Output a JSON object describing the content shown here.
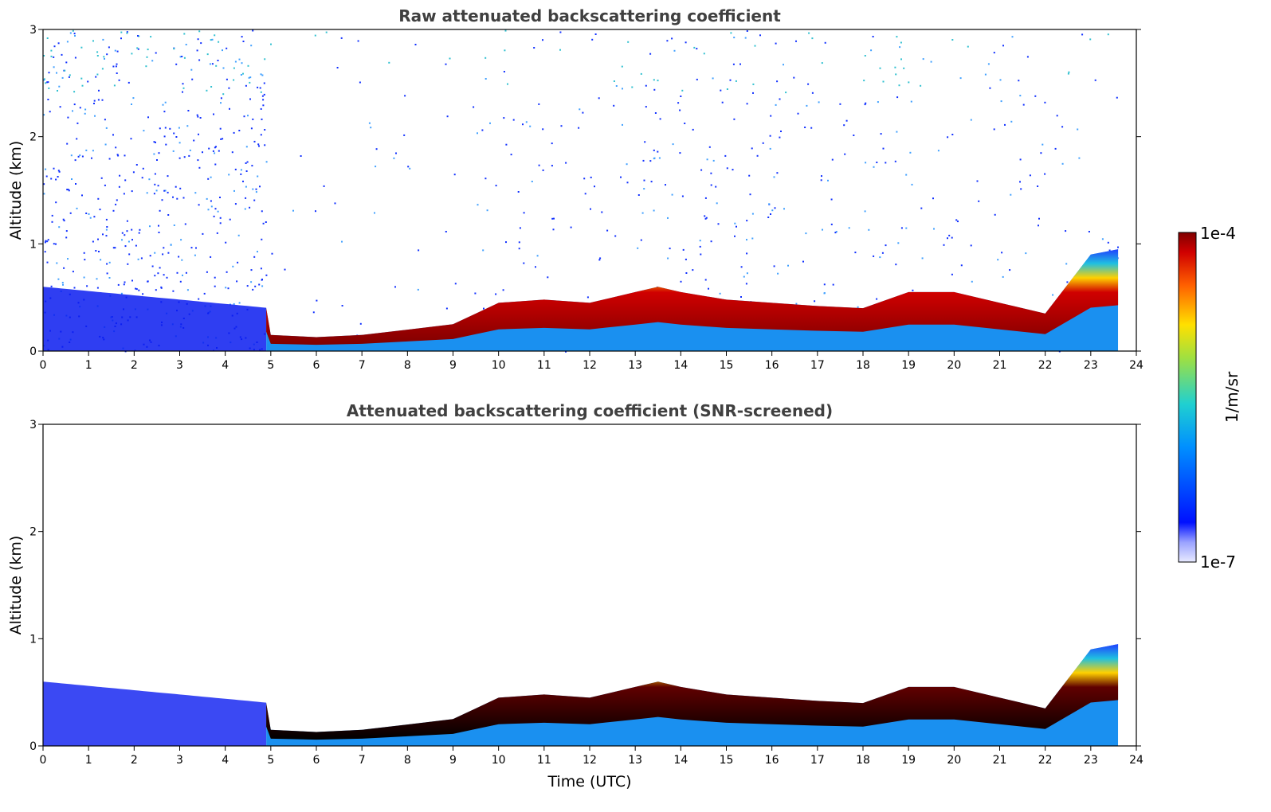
{
  "chart_data": [
    {
      "type": "heatmap",
      "title": "Raw attenuated backscattering coefficient",
      "xlabel": "",
      "ylabel": "Altitude (km)",
      "xlim": [
        0,
        24
      ],
      "ylim": [
        0,
        3
      ],
      "x_ticks": [
        "0",
        "1",
        "2",
        "3",
        "4",
        "5",
        "6",
        "7",
        "8",
        "9",
        "10",
        "11",
        "12",
        "13",
        "14",
        "15",
        "16",
        "17",
        "18",
        "19",
        "20",
        "21",
        "22",
        "23",
        "24"
      ],
      "y_ticks": [
        "0",
        "1",
        "2",
        "3"
      ],
      "layer_top_km": {
        "time_utc": [
          0,
          1,
          2,
          3,
          4,
          4.9,
          5,
          6,
          7,
          8,
          9,
          9.5,
          10,
          11,
          12,
          13,
          13.5,
          14,
          15,
          16,
          17,
          18,
          19,
          20,
          21,
          22,
          23,
          23.6
        ],
        "altitude": [
          0.6,
          0.55,
          0.5,
          0.45,
          0.4,
          0.4,
          0.15,
          0.13,
          0.15,
          0.2,
          0.25,
          0.35,
          0.45,
          0.48,
          0.45,
          0.55,
          0.6,
          0.55,
          0.48,
          0.45,
          0.42,
          0.4,
          0.55,
          0.55,
          0.45,
          0.35,
          0.9,
          0.95
        ]
      },
      "noise_region": "scattered high-altitude noise up to 3 km"
    },
    {
      "type": "heatmap",
      "title": "Attenuated backscattering coefficient (SNR-screened)",
      "xlabel": "Time (UTC)",
      "ylabel": "Altitude (km)",
      "xlim": [
        0,
        24
      ],
      "ylim": [
        0,
        3
      ],
      "x_ticks": [
        "0",
        "1",
        "2",
        "3",
        "4",
        "5",
        "6",
        "7",
        "8",
        "9",
        "10",
        "11",
        "12",
        "13",
        "14",
        "15",
        "16",
        "17",
        "18",
        "19",
        "20",
        "21",
        "22",
        "23",
        "24"
      ],
      "y_ticks": [
        "0",
        "1",
        "2",
        "3"
      ],
      "layer_top_km": {
        "time_utc": [
          0,
          1,
          2,
          3,
          4,
          4.9,
          5,
          6,
          7,
          8,
          9,
          9.5,
          10,
          11,
          12,
          13,
          13.5,
          14,
          15,
          16,
          17,
          18,
          19,
          20,
          21,
          22,
          23,
          23.6
        ],
        "altitude": [
          0.6,
          0.55,
          0.5,
          0.45,
          0.4,
          0.4,
          0.15,
          0.13,
          0.15,
          0.2,
          0.25,
          0.35,
          0.45,
          0.48,
          0.45,
          0.55,
          0.6,
          0.55,
          0.48,
          0.45,
          0.42,
          0.4,
          0.55,
          0.55,
          0.45,
          0.35,
          0.9,
          0.95
        ]
      }
    }
  ],
  "colorbar": {
    "label": "1/m/sr",
    "max_label": "1e-4",
    "min_label": "1e-7",
    "colormap": "jet",
    "scale": "log"
  },
  "colors": {
    "low": "#e8eaff",
    "blue": "#0010ff",
    "cyan": "#20c0e0",
    "green": "#80e060",
    "yellow": "#ffe000",
    "orange": "#ff6000",
    "red": "#d00000",
    "darkred": "#800000"
  }
}
